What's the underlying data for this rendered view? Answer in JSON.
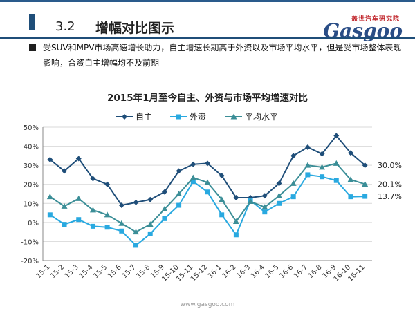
{
  "header": {
    "section_number": "3.2",
    "section_title": "增幅对比图示",
    "logo_cn": "盖世汽车研究院",
    "logo_en": "Gasgoo"
  },
  "description": "受SUV和MPV市场高速增长助力，自主增速长期高于外资以及市场平均水平，但是受市场整体表现影响，合资自主增幅均不及前期",
  "footer": {
    "url": "www.gasgoo.com"
  },
  "colors": {
    "accent": "#1f4e79",
    "brand_red": "#c1272d"
  },
  "chart_data": {
    "type": "line",
    "title": "2015年1月至今自主、外资与市场平均增速对比",
    "categories": [
      "15-1",
      "15-2",
      "15-3",
      "15-4",
      "15-5",
      "15-6",
      "15-7",
      "15-8",
      "15-9",
      "15-10",
      "15-11",
      "15-12",
      "16-1",
      "16-2",
      "16-3",
      "16-4",
      "16-5",
      "16-6",
      "16-7",
      "16-8",
      "16-9",
      "16-10",
      "16-11"
    ],
    "ylim": [
      -20,
      50
    ],
    "yticks": [
      "-20%",
      "-10%",
      "0%",
      "10%",
      "20%",
      "30%",
      "40%",
      "50%"
    ],
    "legend_position": "top",
    "grid": true,
    "series": [
      {
        "name": "自主",
        "color": "#1f4e79",
        "marker": "diamond",
        "values": [
          33,
          27,
          33.5,
          23,
          20,
          9,
          10.5,
          12,
          16,
          27,
          30.5,
          31,
          24.5,
          13,
          13,
          14,
          20.5,
          35,
          39.5,
          36,
          45.5,
          36.5,
          30
        ],
        "end_label": "30.0%"
      },
      {
        "name": "外资",
        "color": "#29a9e0",
        "marker": "square",
        "values": [
          4,
          -1,
          1.5,
          -2,
          -2.5,
          -4.5,
          -12,
          -6,
          2,
          9,
          21.5,
          16,
          4,
          -6.5,
          11.5,
          5.5,
          10,
          13.5,
          25,
          24,
          22,
          13.5,
          13.7
        ],
        "end_label": "13.7%"
      },
      {
        "name": "平均水平",
        "color": "#3b8e97",
        "marker": "triangle",
        "values": [
          13.5,
          8.5,
          12.5,
          6.5,
          4,
          -0.5,
          -5,
          -1,
          7,
          15,
          23.5,
          21,
          12,
          0.5,
          11,
          8,
          14,
          20.5,
          30,
          29,
          31,
          22.5,
          20.1
        ],
        "end_label": "20.1%"
      }
    ]
  }
}
